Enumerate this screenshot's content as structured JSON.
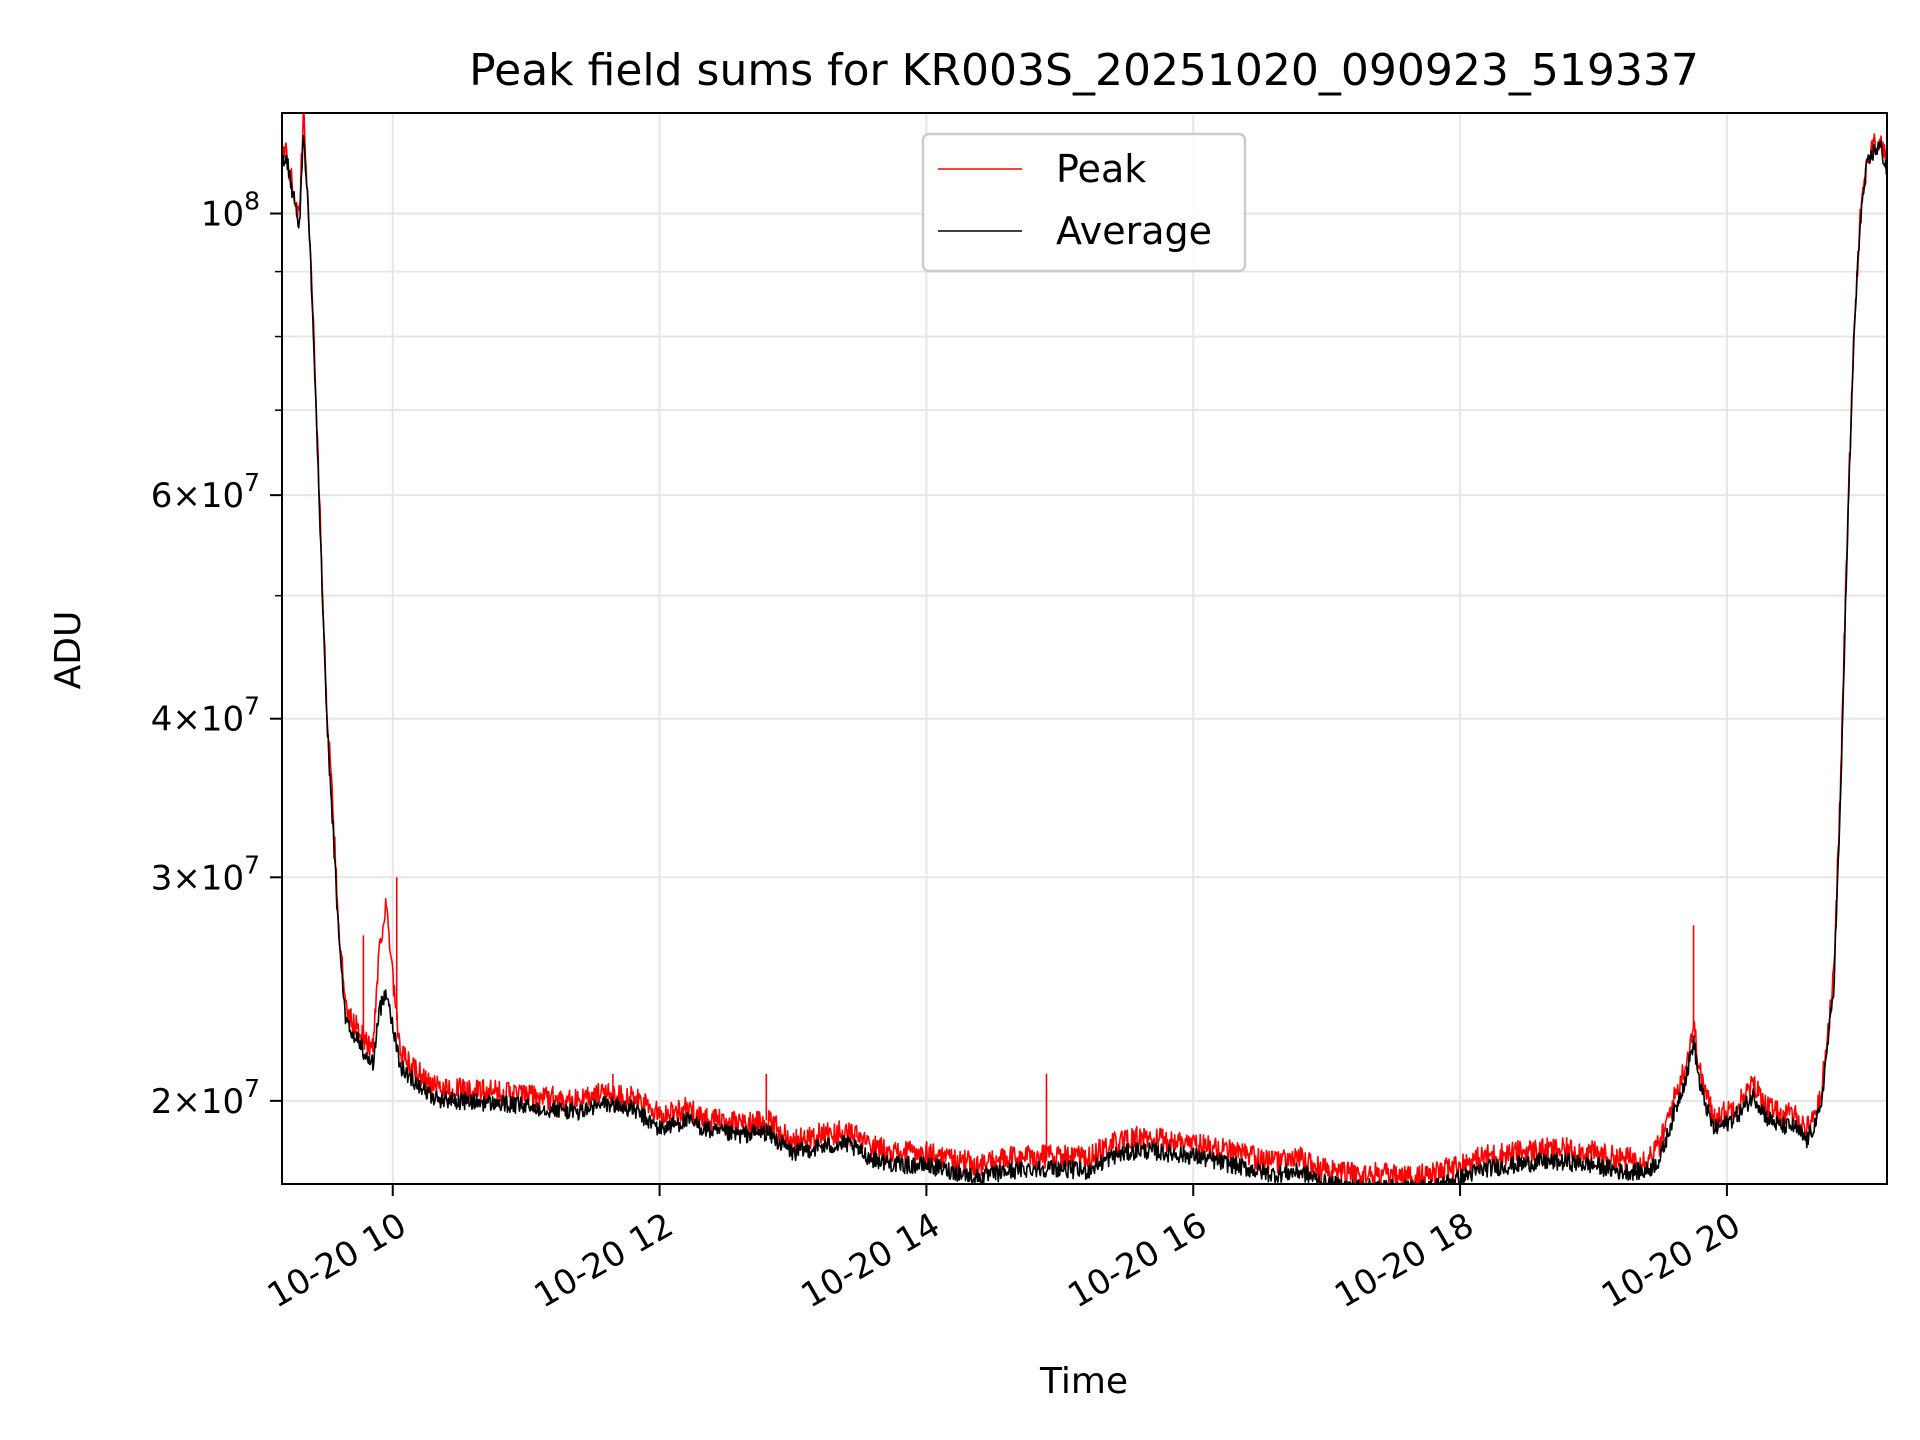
{
  "chart_data": {
    "type": "line",
    "title": "Peak field sums for KR003S_20251020_090923_519337",
    "xlabel": "Time",
    "ylabel": "ADU",
    "yscale": "log",
    "xlim": [
      9.17,
      21.2
    ],
    "ylim": [
      17200000,
      120000000
    ],
    "grid": true,
    "legend_location": "upper center",
    "x_ticks": [
      {
        "value": 10,
        "label": "10-20 10"
      },
      {
        "value": 12,
        "label": "10-20 12"
      },
      {
        "value": 14,
        "label": "10-20 14"
      },
      {
        "value": 16,
        "label": "10-20 16"
      },
      {
        "value": 18,
        "label": "10-20 18"
      },
      {
        "value": 20,
        "label": "10-20 20"
      }
    ],
    "y_ticks": [
      {
        "value": 20000000,
        "base": "2",
        "exp": "7"
      },
      {
        "value": 30000000,
        "base": "3",
        "exp": "7"
      },
      {
        "value": 40000000,
        "base": "4",
        "exp": "7"
      },
      {
        "value": 60000000,
        "base": "6",
        "exp": "7"
      },
      {
        "value": 100000000,
        "base": "10",
        "exp": "8"
      }
    ],
    "y_minor_ticks": [
      50000000,
      70000000,
      80000000,
      90000000
    ],
    "series": [
      {
        "name": "Peak",
        "color": "#ff0000",
        "x": [
          9.17,
          9.2,
          9.25,
          9.3,
          9.33,
          9.36,
          9.4,
          9.45,
          9.5,
          9.55,
          9.6,
          9.65,
          9.7,
          9.75,
          9.8,
          9.85,
          9.9,
          9.95,
          10.0,
          10.05,
          10.1,
          10.2,
          10.3,
          10.5,
          10.8,
          11.0,
          11.2,
          11.4,
          11.6,
          11.8,
          12.0,
          12.2,
          12.4,
          12.6,
          12.8,
          13.0,
          13.2,
          13.4,
          13.6,
          13.8,
          14.0,
          14.2,
          14.4,
          14.6,
          14.8,
          15.0,
          15.2,
          15.4,
          15.6,
          15.8,
          16.0,
          16.2,
          16.4,
          16.6,
          16.8,
          17.0,
          17.2,
          17.4,
          17.6,
          17.8,
          18.0,
          18.2,
          18.4,
          18.6,
          18.8,
          19.0,
          19.2,
          19.4,
          19.5,
          19.6,
          19.7,
          19.75,
          19.8,
          19.9,
          20.0,
          20.1,
          20.2,
          20.3,
          20.4,
          20.5,
          20.6,
          20.7,
          20.8,
          20.85,
          20.9,
          20.95,
          21.0,
          21.05,
          21.1,
          21.15,
          21.2
        ],
        "y": [
          110000000,
          112000000,
          105000000,
          99000000,
          120000000,
          105000000,
          85000000,
          60000000,
          42000000,
          34000000,
          27000000,
          23500000,
          23000000,
          22800000,
          22200000,
          22000000,
          26500000,
          28500000,
          25000000,
          22000000,
          21500000,
          21000000,
          20500000,
          20400000,
          20300000,
          20200000,
          20100000,
          20000000,
          20300000,
          20100000,
          19500000,
          19700000,
          19300000,
          19200000,
          19300000,
          18600000,
          18800000,
          18900000,
          18400000,
          18200000,
          18200000,
          18000000,
          17800000,
          18000000,
          18100000,
          18100000,
          18000000,
          18500000,
          18700000,
          18600000,
          18500000,
          18300000,
          18100000,
          17900000,
          18000000,
          17600000,
          17500000,
          17500000,
          17400000,
          17500000,
          17800000,
          18100000,
          18200000,
          18300000,
          18300000,
          18200000,
          18000000,
          18000000,
          18500000,
          20000000,
          21500000,
          23000000,
          21000000,
          19400000,
          19600000,
          20000000,
          20600000,
          19800000,
          19500000,
          19500000,
          19000000,
          20000000,
          25000000,
          35000000,
          55000000,
          80000000,
          100000000,
          110000000,
          113000000,
          114000000,
          110000000
        ]
      },
      {
        "name": "Average",
        "color": "#000000",
        "x": [
          9.17,
          9.2,
          9.25,
          9.3,
          9.33,
          9.36,
          9.4,
          9.45,
          9.5,
          9.55,
          9.6,
          9.65,
          9.7,
          9.75,
          9.8,
          9.85,
          9.9,
          9.95,
          10.0,
          10.05,
          10.1,
          10.2,
          10.3,
          10.5,
          10.8,
          11.0,
          11.2,
          11.4,
          11.6,
          11.8,
          12.0,
          12.2,
          12.4,
          12.6,
          12.8,
          13.0,
          13.2,
          13.4,
          13.6,
          13.8,
          14.0,
          14.2,
          14.4,
          14.6,
          14.8,
          15.0,
          15.2,
          15.4,
          15.6,
          15.8,
          16.0,
          16.2,
          16.4,
          16.6,
          16.8,
          17.0,
          17.2,
          17.4,
          17.6,
          17.8,
          18.0,
          18.2,
          18.4,
          18.6,
          18.8,
          19.0,
          19.2,
          19.4,
          19.5,
          19.6,
          19.7,
          19.75,
          19.8,
          19.9,
          20.0,
          20.1,
          20.2,
          20.3,
          20.4,
          20.5,
          20.6,
          20.7,
          20.8,
          20.85,
          20.9,
          20.95,
          21.0,
          21.05,
          21.1,
          21.15,
          21.2
        ],
        "y": [
          109000000,
          111000000,
          104000000,
          98000000,
          115000000,
          104000000,
          84000000,
          59000000,
          41000000,
          33000000,
          26500000,
          23000000,
          22500000,
          22300000,
          21600000,
          21400000,
          23500000,
          24500000,
          23000000,
          21400000,
          21000000,
          20600000,
          20100000,
          20000000,
          19900000,
          19800000,
          19700000,
          19600000,
          19900000,
          19700000,
          19000000,
          19300000,
          18900000,
          18800000,
          18900000,
          18200000,
          18400000,
          18500000,
          18000000,
          17800000,
          17800000,
          17600000,
          17400000,
          17600000,
          17700000,
          17700000,
          17600000,
          18100000,
          18300000,
          18200000,
          18100000,
          17900000,
          17700000,
          17500000,
          17600000,
          17200000,
          17100000,
          17100000,
          17050000,
          17100000,
          17400000,
          17700000,
          17800000,
          17900000,
          17900000,
          17800000,
          17600000,
          17600000,
          18000000,
          19500000,
          21000000,
          22300000,
          20500000,
          19000000,
          19200000,
          19600000,
          20200000,
          19400000,
          19100000,
          19100000,
          18600000,
          19600000,
          24500000,
          34000000,
          54000000,
          79000000,
          99000000,
          109000000,
          112000000,
          113000000,
          108000000
        ]
      }
    ],
    "annotations": [
      {
        "x": 9.78,
        "y": 27000000,
        "series": "Peak"
      },
      {
        "x": 10.03,
        "y": 30000000,
        "series": "Peak"
      },
      {
        "x": 11.65,
        "y": 21000000,
        "series": "Peak"
      },
      {
        "x": 12.8,
        "y": 21000000,
        "series": "Peak"
      },
      {
        "x": 14.9,
        "y": 21000000,
        "series": "Peak"
      },
      {
        "x": 19.75,
        "y": 27500000,
        "series": "Peak"
      }
    ]
  }
}
